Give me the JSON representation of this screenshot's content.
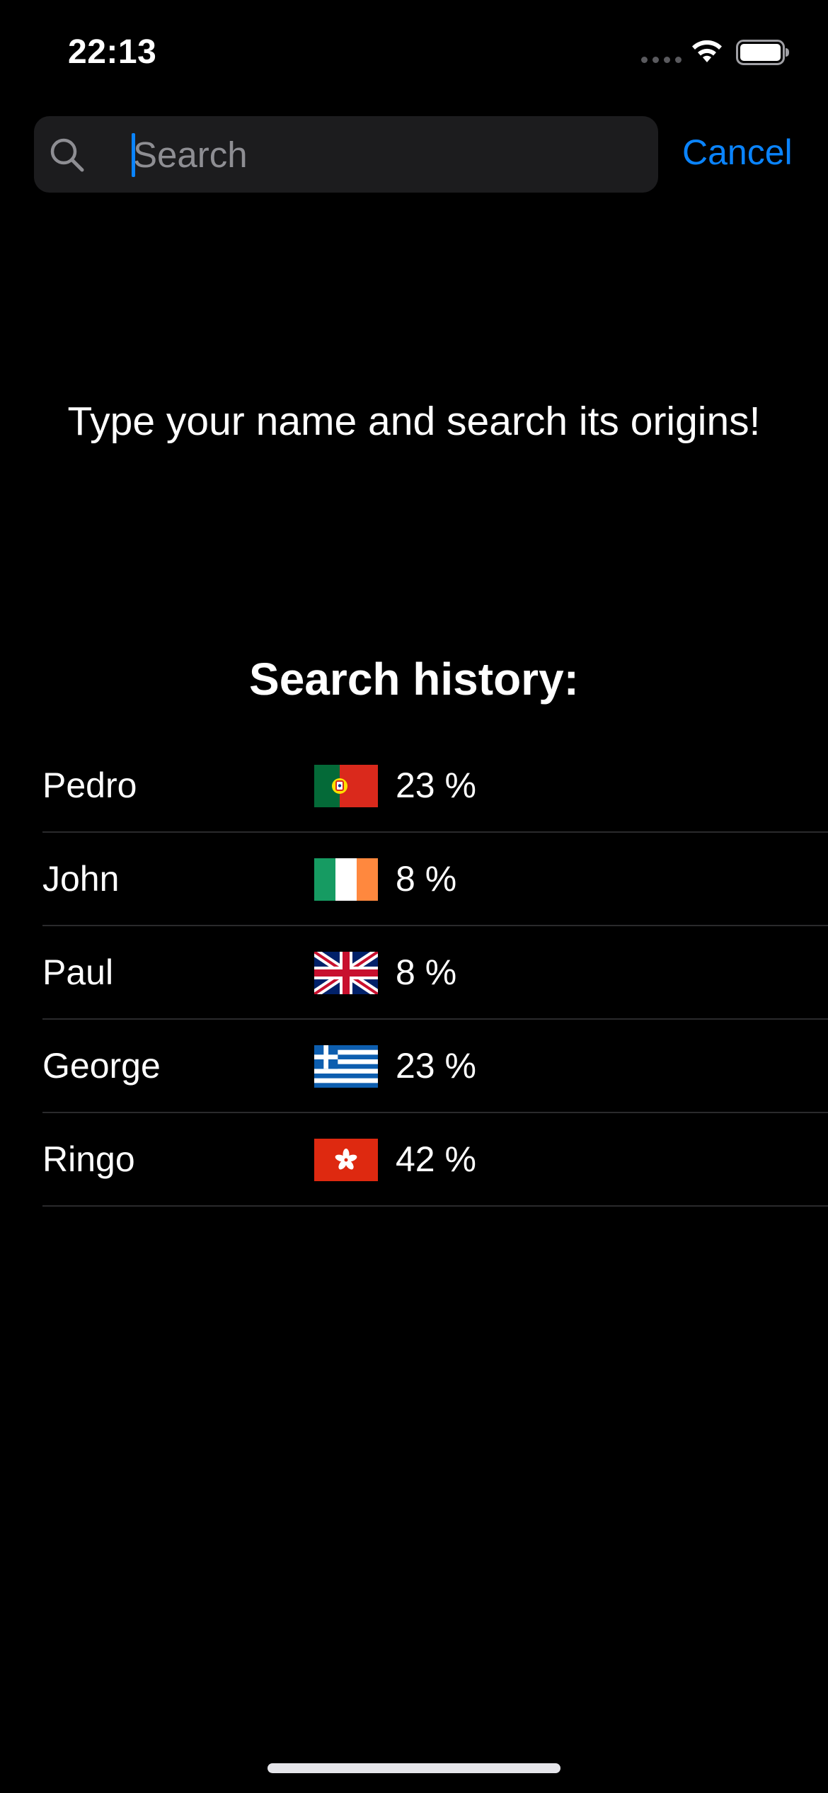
{
  "status_bar": {
    "time": "22:13",
    "icons": [
      "cellular-signal-icon",
      "wifi-icon",
      "battery-icon"
    ]
  },
  "search": {
    "value": "",
    "placeholder": "Search",
    "icon": "magnifying-glass-icon",
    "cursor_color": "#0a84ff",
    "cancel_label": "Cancel"
  },
  "prompt": {
    "text": "Type your name and search its origins!"
  },
  "history": {
    "title": "Search history:",
    "items": [
      {
        "name": "Pedro",
        "flag": "portugal-flag-icon",
        "percent": "23 %"
      },
      {
        "name": "John",
        "flag": "ireland-flag-icon",
        "percent": "8 %"
      },
      {
        "name": "Paul",
        "flag": "united-kingdom-flag-icon",
        "percent": "8 %"
      },
      {
        "name": "George",
        "flag": "greece-flag-icon",
        "percent": "23 %"
      },
      {
        "name": "Ringo",
        "flag": "hong-kong-flag-icon",
        "percent": "42 %"
      }
    ]
  },
  "colors": {
    "background": "#000000",
    "accent": "#0a84ff",
    "search_field": "#1c1c1e",
    "placeholder": "#8e8e93",
    "separator": "#2a2a2c"
  }
}
